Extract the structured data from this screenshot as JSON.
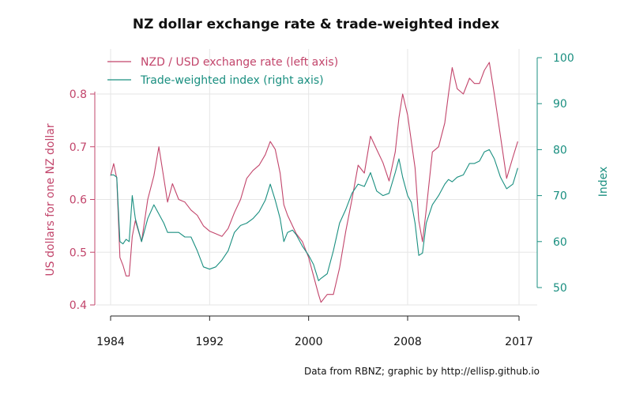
{
  "title": "NZ dollar exchange rate & trade-weighted index",
  "caption": "Data from RBNZ; graphic by http://ellisp.github.io",
  "colors": {
    "left": "#c2456b",
    "right": "#1a8f80",
    "grid": "#e6e6e6",
    "axis": "#222222"
  },
  "chart_data": {
    "type": "line",
    "title": "NZ dollar exchange rate & trade-weighted index",
    "xlabel": "",
    "ylabel_left": "US dollars for one NZ dollar",
    "ylabel_right": "Index",
    "xlim": [
      1984,
      2017
    ],
    "ylim_left": [
      0.4,
      0.88
    ],
    "ylim_right": [
      45,
      101
    ],
    "xticks": [
      "1984",
      "1992",
      "2000",
      "2008",
      "2017"
    ],
    "xtick_values": [
      1984,
      1992,
      2000,
      2008,
      2017
    ],
    "yticks_left": [
      "0.4",
      "0.5",
      "0.6",
      "0.7",
      "0.8"
    ],
    "ytick_values_left": [
      0.4,
      0.5,
      0.6,
      0.7,
      0.8
    ],
    "yticks_right": [
      "50",
      "60",
      "70",
      "80",
      "90",
      "100"
    ],
    "ytick_values_right": [
      50,
      60,
      70,
      80,
      90,
      100
    ],
    "grid": true,
    "legend_position": "top-left",
    "series": [
      {
        "name": "NZD / USD exchange rate (left axis)",
        "axis": "left",
        "x": [
          1984.0,
          1984.25,
          1984.5,
          1984.75,
          1985.0,
          1985.25,
          1985.5,
          1985.75,
          1986.0,
          1986.5,
          1987.0,
          1987.5,
          1987.9,
          1988.3,
          1988.6,
          1989.0,
          1989.5,
          1990.0,
          1990.5,
          1991.0,
          1991.5,
          1992.0,
          1992.5,
          1993.0,
          1993.5,
          1994.0,
          1994.5,
          1995.0,
          1995.5,
          1996.0,
          1996.5,
          1996.9,
          1997.3,
          1997.7,
          1998.0,
          1998.3,
          1998.7,
          1999.0,
          1999.5,
          2000.0,
          2000.4,
          2000.8,
          2001.0,
          2001.5,
          2002.0,
          2002.5,
          2003.0,
          2003.5,
          2004.0,
          2004.5,
          2005.0,
          2005.5,
          2006.0,
          2006.5,
          2007.0,
          2007.3,
          2007.6,
          2008.0,
          2008.3,
          2008.6,
          2008.9,
          2009.2,
          2009.5,
          2010.0,
          2010.5,
          2011.0,
          2011.3,
          2011.6,
          2012.0,
          2012.5,
          2013.0,
          2013.4,
          2013.8,
          2014.2,
          2014.6,
          2015.0,
          2015.5,
          2016.0,
          2016.5,
          2016.9
        ],
        "y": [
          0.645,
          0.668,
          0.64,
          0.49,
          0.475,
          0.455,
          0.455,
          0.53,
          0.56,
          0.52,
          0.6,
          0.645,
          0.7,
          0.64,
          0.595,
          0.63,
          0.6,
          0.595,
          0.58,
          0.57,
          0.55,
          0.54,
          0.535,
          0.53,
          0.545,
          0.575,
          0.6,
          0.64,
          0.655,
          0.665,
          0.685,
          0.71,
          0.695,
          0.65,
          0.59,
          0.57,
          0.55,
          0.535,
          0.52,
          0.49,
          0.455,
          0.42,
          0.405,
          0.42,
          0.42,
          0.47,
          0.54,
          0.6,
          0.665,
          0.65,
          0.72,
          0.695,
          0.67,
          0.635,
          0.69,
          0.755,
          0.8,
          0.76,
          0.71,
          0.66,
          0.56,
          0.52,
          0.58,
          0.69,
          0.7,
          0.745,
          0.8,
          0.85,
          0.81,
          0.8,
          0.83,
          0.82,
          0.82,
          0.845,
          0.86,
          0.8,
          0.72,
          0.64,
          0.68,
          0.71
        ]
      },
      {
        "name": "Trade-weighted index (right axis)",
        "axis": "right",
        "x": [
          1984.0,
          1984.25,
          1984.5,
          1984.75,
          1985.0,
          1985.25,
          1985.5,
          1985.75,
          1986.0,
          1986.5,
          1987.0,
          1987.5,
          1987.9,
          1988.3,
          1988.6,
          1989.0,
          1989.5,
          1990.0,
          1990.5,
          1991.0,
          1991.5,
          1992.0,
          1992.5,
          1993.0,
          1993.5,
          1994.0,
          1994.5,
          1995.0,
          1995.5,
          1996.0,
          1996.5,
          1996.9,
          1997.3,
          1997.7,
          1998.0,
          1998.3,
          1998.7,
          1999.0,
          1999.5,
          2000.0,
          2000.4,
          2000.8,
          2001.0,
          2001.5,
          2002.0,
          2002.5,
          2003.0,
          2003.5,
          2004.0,
          2004.5,
          2005.0,
          2005.5,
          2006.0,
          2006.5,
          2007.0,
          2007.3,
          2007.6,
          2008.0,
          2008.3,
          2008.6,
          2008.9,
          2009.2,
          2009.5,
          2010.0,
          2010.5,
          2011.0,
          2011.3,
          2011.6,
          2012.0,
          2012.5,
          2013.0,
          2013.4,
          2013.8,
          2014.2,
          2014.6,
          2015.0,
          2015.5,
          2016.0,
          2016.5,
          2016.9
        ],
        "y": [
          74.5,
          74.5,
          74.0,
          60.0,
          59.5,
          60.5,
          60.0,
          70.0,
          65.0,
          60.0,
          65.0,
          68.0,
          66.0,
          64.0,
          62.0,
          62.0,
          62.0,
          61.0,
          61.0,
          58.0,
          54.5,
          54.0,
          54.5,
          56.0,
          58.0,
          62.0,
          63.5,
          64.0,
          65.0,
          66.5,
          69.0,
          72.5,
          69.0,
          65.0,
          60.0,
          62.0,
          62.5,
          61.5,
          59.0,
          57.0,
          55.0,
          51.5,
          52.0,
          53.0,
          58.0,
          64.0,
          67.0,
          70.5,
          72.5,
          72.0,
          75.0,
          71.0,
          70.0,
          70.5,
          75.0,
          78.0,
          74.0,
          70.0,
          68.5,
          64.0,
          57.0,
          57.5,
          64.0,
          68.0,
          70.0,
          72.5,
          73.5,
          73.0,
          74.0,
          74.5,
          77.0,
          77.0,
          77.5,
          79.5,
          80.0,
          78.0,
          74.0,
          71.5,
          72.5,
          76.0
        ]
      }
    ]
  }
}
